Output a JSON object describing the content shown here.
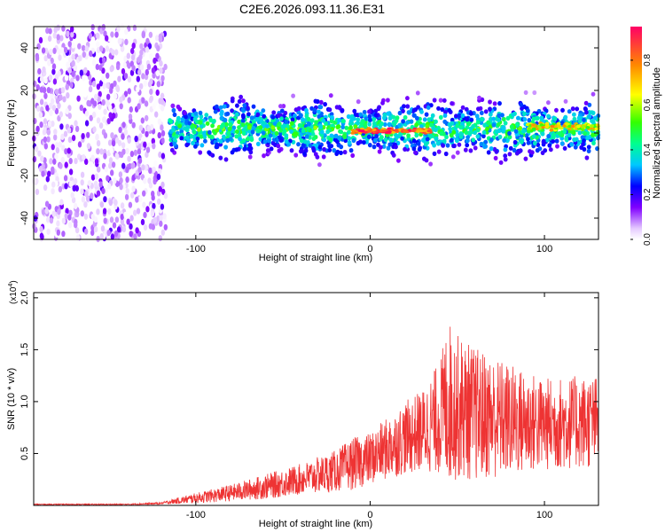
{
  "title": "C2E6.2026.093.11.36.E31",
  "chart_data": [
    {
      "type": "heatmap",
      "xlabel": "Height of straight line (km)",
      "ylabel": "Frequency (Hz)",
      "xlim": [
        -193,
        131
      ],
      "ylim": [
        -50,
        50
      ],
      "xticks": [
        -100,
        0,
        100
      ],
      "yticks": [
        -40,
        -20,
        0,
        20,
        40
      ],
      "colorbar": {
        "label": "Normalized spectral amplitude",
        "range": [
          0,
          0.95
        ],
        "ticks": [
          0.0,
          0.2,
          0.4,
          0.6,
          0.8
        ],
        "tick_labels": [
          "0.0",
          "0.2",
          "0.4",
          "0.6",
          "0.8"
        ]
      },
      "regions": [
        {
          "name": "low-amplitude noise",
          "x_range": [
            -193,
            -117
          ],
          "freq_range": [
            -50,
            50
          ],
          "amplitude": [
            0.0,
            0.1
          ]
        },
        {
          "name": "signal band",
          "x_range": [
            -115,
            131
          ],
          "freq_center": 2,
          "freq_halfwidth": 8,
          "amplitude": [
            0.05,
            0.55
          ]
        },
        {
          "name": "peak band",
          "x_range": [
            -10,
            35
          ],
          "freq_center": 1,
          "amplitude": [
            0.7,
            0.95
          ]
        },
        {
          "name": "bright band",
          "x_range": [
            90,
            131
          ],
          "freq_center": 3,
          "amplitude": [
            0.5,
            0.8
          ]
        }
      ]
    },
    {
      "type": "line",
      "xlabel": "Height of straight line (km)",
      "ylabel": "SNR (10 * v/v)",
      "y_multiplier": "(x10",
      "y_multiplier_exp": "4",
      "y_multiplier_close": ")",
      "xlim": [
        -193,
        131
      ],
      "ylim": [
        0,
        2.05
      ],
      "xticks": [
        -100,
        0,
        100
      ],
      "yticks": [
        0.5,
        1.0,
        1.5,
        2.0
      ],
      "ytick_labels": [
        "0.5",
        "1.0",
        "1.5",
        "2.0"
      ],
      "color": "#ee3333",
      "envelope": {
        "x": [
          -193,
          -140,
          -120,
          -100,
          -80,
          -60,
          -40,
          -20,
          -10,
          0,
          10,
          20,
          30,
          40,
          45,
          50,
          60,
          80,
          100,
          120,
          131
        ],
        "mean": [
          0.01,
          0.01,
          0.02,
          0.07,
          0.12,
          0.18,
          0.25,
          0.33,
          0.4,
          0.45,
          0.55,
          0.65,
          0.72,
          0.85,
          1.0,
          0.95,
          0.88,
          0.82,
          0.78,
          0.8,
          0.8
        ],
        "amplitude": [
          0.005,
          0.005,
          0.01,
          0.05,
          0.08,
          0.12,
          0.15,
          0.2,
          0.25,
          0.25,
          0.3,
          0.35,
          0.4,
          0.55,
          0.8,
          0.7,
          0.65,
          0.55,
          0.45,
          0.45,
          0.45
        ]
      }
    }
  ]
}
